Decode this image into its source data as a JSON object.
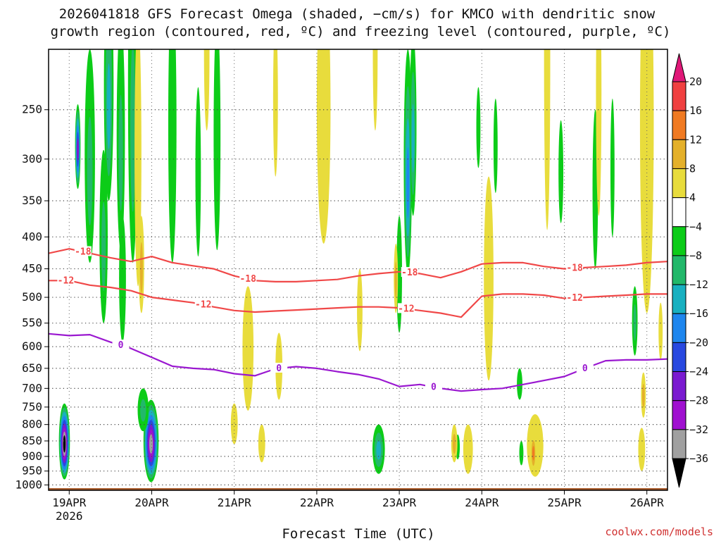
{
  "chart_data": {
    "type": "heatmap",
    "title_line1": "2026041818 GFS Forecast Omega (shaded, −cm/s) for KMCO with dendritic snow",
    "title_line2": "growth region (contoured, red, ºC) and freezing level (contoured, purple, ºC)",
    "xlabel": "Forecast Time (UTC)",
    "credit": "coolwx.com/models",
    "x_ticks": [
      {
        "label": "19APR",
        "sub": "2026",
        "hour": 6
      },
      {
        "label": "20APR",
        "sub": "",
        "hour": 30
      },
      {
        "label": "21APR",
        "sub": "",
        "hour": 54
      },
      {
        "label": "22APR",
        "sub": "",
        "hour": 78
      },
      {
        "label": "23APR",
        "sub": "",
        "hour": 102
      },
      {
        "label": "24APR",
        "sub": "",
        "hour": 126
      },
      {
        "label": "25APR",
        "sub": "",
        "hour": 150
      },
      {
        "label": "26APR",
        "sub": "",
        "hour": 174
      }
    ],
    "xlim_hours": [
      0,
      180
    ],
    "y_levels_hpa": [
      250,
      300,
      350,
      400,
      450,
      500,
      550,
      600,
      650,
      700,
      750,
      800,
      850,
      900,
      950,
      1000
    ],
    "y_tick_labels": [
      "250",
      "300",
      "350",
      "400",
      "450",
      "500",
      "550",
      "600",
      "650",
      "700",
      "750",
      "800",
      "850",
      "900",
      "950",
      "1000"
    ],
    "ylim_hpa": [
      200,
      1020
    ],
    "colorbar": {
      "labels": [
        "20",
        "16",
        "12",
        "8",
        "4",
        "−4",
        "−8",
        "−12",
        "−16",
        "−20",
        "−24",
        "−28",
        "−32",
        "−36"
      ],
      "bins": [
        {
          "range": [
            16,
            20
          ],
          "color": "#f04040"
        },
        {
          "range": [
            12,
            16
          ],
          "color": "#f07a22"
        },
        {
          "range": [
            8,
            12
          ],
          "color": "#e4b02a"
        },
        {
          "range": [
            4,
            8
          ],
          "color": "#e8dc3c"
        },
        {
          "range": [
            -4,
            4
          ],
          "color": "#ffffff"
        },
        {
          "range": [
            -8,
            -4
          ],
          "color": "#0ccc18"
        },
        {
          "range": [
            -12,
            -8
          ],
          "color": "#22b86a"
        },
        {
          "range": [
            -16,
            -12
          ],
          "color": "#18b0c0"
        },
        {
          "range": [
            -20,
            -16
          ],
          "color": "#1e86ee"
        },
        {
          "range": [
            -24,
            -20
          ],
          "color": "#2848e0"
        },
        {
          "range": [
            -28,
            -24
          ],
          "color": "#7a1ad0"
        },
        {
          "range": [
            -32,
            -28
          ],
          "color": "#a010d0"
        },
        {
          "range": [
            -36,
            -32
          ],
          "color": "#a0a0a0"
        }
      ],
      "top_arrow_color": "#e01878",
      "bottom_arrow_color": "#000000"
    },
    "contours": [
      {
        "name": "-18C isotherm",
        "label": "-18",
        "color": "#f04848",
        "hours": [
          0,
          6,
          12,
          18,
          24,
          30,
          36,
          42,
          48,
          54,
          60,
          66,
          72,
          78,
          84,
          90,
          96,
          102,
          108,
          114,
          120,
          126,
          132,
          138,
          144,
          150,
          156,
          162,
          168,
          174,
          180
        ],
        "values": [
          425,
          418,
          425,
          432,
          438,
          430,
          440,
          445,
          450,
          462,
          470,
          472,
          472,
          470,
          468,
          462,
          458,
          455,
          458,
          465,
          455,
          442,
          440,
          440,
          446,
          450,
          448,
          446,
          444,
          440,
          438
        ],
        "label_hours": [
          10,
          58,
          105,
          153
        ]
      },
      {
        "name": "-12C isotherm",
        "label": "-12",
        "color": "#f04848",
        "hours": [
          0,
          6,
          12,
          18,
          24,
          30,
          36,
          42,
          48,
          54,
          60,
          66,
          72,
          78,
          84,
          90,
          96,
          102,
          108,
          114,
          120,
          126,
          132,
          138,
          144,
          150,
          156,
          162,
          168,
          174,
          180
        ],
        "values": [
          470,
          470,
          478,
          482,
          488,
          500,
          505,
          510,
          518,
          525,
          528,
          526,
          524,
          522,
          520,
          518,
          518,
          520,
          525,
          530,
          538,
          498,
          494,
          494,
          496,
          502,
          500,
          498,
          496,
          494,
          494
        ],
        "label_hours": [
          5,
          45,
          104,
          153
        ]
      },
      {
        "name": "0C freezing level",
        "label": "0",
        "color": "#9a18d0",
        "hours": [
          0,
          6,
          12,
          18,
          24,
          30,
          36,
          42,
          48,
          54,
          60,
          66,
          72,
          78,
          84,
          90,
          96,
          102,
          108,
          114,
          120,
          126,
          132,
          138,
          144,
          150,
          156,
          162,
          168,
          174,
          180
        ],
        "values": [
          572,
          576,
          574,
          590,
          604,
          624,
          645,
          650,
          653,
          663,
          668,
          651,
          646,
          650,
          658,
          665,
          676,
          695,
          690,
          700,
          707,
          703,
          700,
          690,
          680,
          670,
          650,
          632,
          630,
          630,
          628
        ],
        "label_hours": [
          21,
          67,
          112,
          156
        ]
      }
    ],
    "terrain_color": "#a85a2a",
    "omega_blobs": [
      {
        "h": 4.6,
        "p": 860,
        "dh": 1.6,
        "dp": 120,
        "v": -36
      },
      {
        "h": 29.8,
        "p": 860,
        "dh": 2.2,
        "dp": 130,
        "v": -32
      },
      {
        "h": 27.5,
        "p": 760,
        "dh": 1.6,
        "dp": 60,
        "v": -10
      },
      {
        "h": 8.5,
        "p": 290,
        "dh": 0.8,
        "dp": 45,
        "v": -24
      },
      {
        "h": 17.5,
        "p": 250,
        "dh": 1.4,
        "dp": 100,
        "v": -12
      },
      {
        "h": 16.0,
        "p": 420,
        "dh": 1.2,
        "dp": 130,
        "v": -8
      },
      {
        "h": 12.0,
        "p": 320,
        "dh": 1.5,
        "dp": 120,
        "v": -8
      },
      {
        "h": 21.0,
        "p": 300,
        "dh": 1.2,
        "dp": 120,
        "v": -8
      },
      {
        "h": 24.5,
        "p": 280,
        "dh": 1.4,
        "dp": 160,
        "v": -8
      },
      {
        "h": 21.5,
        "p": 480,
        "dh": 1.0,
        "dp": 110,
        "v": -6
      },
      {
        "h": 36.0,
        "p": 300,
        "dh": 1.2,
        "dp": 140,
        "v": -6
      },
      {
        "h": 49.0,
        "p": 300,
        "dh": 1.0,
        "dp": 120,
        "v": -6
      },
      {
        "h": 43.5,
        "p": 330,
        "dh": 0.8,
        "dp": 100,
        "v": -6
      },
      {
        "h": 104.5,
        "p": 330,
        "dh": 1.2,
        "dp": 130,
        "v": -16
      },
      {
        "h": 106.0,
        "p": 280,
        "dh": 1.0,
        "dp": 90,
        "v": -12
      },
      {
        "h": 102.0,
        "p": 470,
        "dh": 0.8,
        "dp": 100,
        "v": -6
      },
      {
        "h": 96.0,
        "p": 880,
        "dh": 1.8,
        "dp": 80,
        "v": -12
      },
      {
        "h": 125.0,
        "p": 270,
        "dh": 0.6,
        "dp": 40,
        "v": -6
      },
      {
        "h": 130.0,
        "p": 290,
        "dh": 0.6,
        "dp": 50,
        "v": -6
      },
      {
        "h": 149.0,
        "p": 320,
        "dh": 0.7,
        "dp": 60,
        "v": -6
      },
      {
        "h": 159.0,
        "p": 350,
        "dh": 0.8,
        "dp": 100,
        "v": -6
      },
      {
        "h": 164.0,
        "p": 320,
        "dh": 0.6,
        "dp": 80,
        "v": -6
      },
      {
        "h": 170.5,
        "p": 550,
        "dh": 0.8,
        "dp": 70,
        "v": -10
      },
      {
        "h": 137.0,
        "p": 690,
        "dh": 0.8,
        "dp": 40,
        "v": -6
      },
      {
        "h": 137.5,
        "p": 890,
        "dh": 0.6,
        "dp": 40,
        "v": -6
      },
      {
        "h": 119.0,
        "p": 870,
        "dh": 0.6,
        "dp": 40,
        "v": -6
      },
      {
        "h": 80.5,
        "p": 280,
        "dh": 1.0,
        "dp": 70,
        "v": 12
      },
      {
        "h": 80.0,
        "p": 280,
        "dh": 2.0,
        "dp": 130,
        "v": 6
      },
      {
        "h": 174.0,
        "p": 250,
        "dh": 1.2,
        "dp": 180,
        "v": 12
      },
      {
        "h": 174.0,
        "p": 330,
        "dh": 2.0,
        "dp": 200,
        "v": 6
      },
      {
        "h": 26.0,
        "p": 330,
        "dh": 1.0,
        "dp": 150,
        "v": 6
      },
      {
        "h": 27.0,
        "p": 450,
        "dh": 0.8,
        "dp": 80,
        "v": 9
      },
      {
        "h": 58.0,
        "p": 620,
        "dh": 1.6,
        "dp": 140,
        "v": 5
      },
      {
        "h": 67.0,
        "p": 650,
        "dh": 1.0,
        "dp": 80,
        "v": 5
      },
      {
        "h": 54.0,
        "p": 800,
        "dh": 1.0,
        "dp": 60,
        "v": 5
      },
      {
        "h": 62.0,
        "p": 860,
        "dh": 1.0,
        "dp": 60,
        "v": 5
      },
      {
        "h": 122.0,
        "p": 880,
        "dh": 1.4,
        "dp": 80,
        "v": 7
      },
      {
        "h": 118.0,
        "p": 860,
        "dh": 0.9,
        "dp": 60,
        "v": 10
      },
      {
        "h": 141.5,
        "p": 870,
        "dh": 2.4,
        "dp": 100,
        "v": 6
      },
      {
        "h": 141.0,
        "p": 890,
        "dh": 0.8,
        "dp": 60,
        "v": 12
      },
      {
        "h": 172.5,
        "p": 880,
        "dh": 1.0,
        "dp": 70,
        "v": 6
      },
      {
        "h": 128.0,
        "p": 500,
        "dh": 1.4,
        "dp": 180,
        "v": 5
      },
      {
        "h": 145.0,
        "p": 250,
        "dh": 0.9,
        "dp": 140,
        "v": 5
      },
      {
        "h": 160.0,
        "p": 260,
        "dh": 0.8,
        "dp": 110,
        "v": 5
      },
      {
        "h": 178.0,
        "p": 570,
        "dh": 0.6,
        "dp": 60,
        "v": 5
      },
      {
        "h": 101.0,
        "p": 470,
        "dh": 0.6,
        "dp": 60,
        "v": 9
      },
      {
        "h": 90.5,
        "p": 530,
        "dh": 0.8,
        "dp": 80,
        "v": 5
      },
      {
        "h": 46.0,
        "p": 210,
        "dh": 0.8,
        "dp": 60,
        "v": 5
      },
      {
        "h": 66.0,
        "p": 250,
        "dh": 0.7,
        "dp": 70,
        "v": 5
      },
      {
        "h": 95.0,
        "p": 210,
        "dh": 0.7,
        "dp": 60,
        "v": 5
      },
      {
        "h": 173.0,
        "p": 720,
        "dh": 0.7,
        "dp": 60,
        "v": 8
      }
    ]
  }
}
